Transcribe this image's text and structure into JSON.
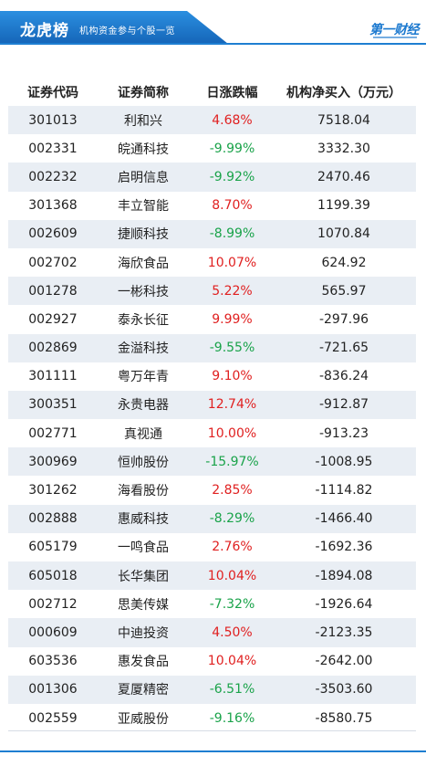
{
  "header": {
    "title": "龙虎榜",
    "subtitle": "机构资金参与个股一览",
    "logo_text": "第一财经"
  },
  "table": {
    "columns": [
      "证券代码",
      "证券简称",
      "日涨跌幅",
      "机构净买入（万元）"
    ],
    "rows": [
      {
        "code": "301013",
        "name": "利和兴",
        "change": "4.68%",
        "net": "7518.04",
        "dir": "up"
      },
      {
        "code": "002331",
        "name": "皖通科技",
        "change": "-9.99%",
        "net": "3332.30",
        "dir": "down"
      },
      {
        "code": "002232",
        "name": "启明信息",
        "change": "-9.92%",
        "net": "2470.46",
        "dir": "down"
      },
      {
        "code": "301368",
        "name": "丰立智能",
        "change": "8.70%",
        "net": "1199.39",
        "dir": "up"
      },
      {
        "code": "002609",
        "name": "捷顺科技",
        "change": "-8.99%",
        "net": "1070.84",
        "dir": "down"
      },
      {
        "code": "002702",
        "name": "海欣食品",
        "change": "10.07%",
        "net": "624.92",
        "dir": "up"
      },
      {
        "code": "001278",
        "name": "一彬科技",
        "change": "5.22%",
        "net": "565.97",
        "dir": "up"
      },
      {
        "code": "002927",
        "name": "泰永长征",
        "change": "9.99%",
        "net": "-297.96",
        "dir": "up"
      },
      {
        "code": "002869",
        "name": "金溢科技",
        "change": "-9.55%",
        "net": "-721.65",
        "dir": "down"
      },
      {
        "code": "301111",
        "name": "粤万年青",
        "change": "9.10%",
        "net": "-836.24",
        "dir": "up"
      },
      {
        "code": "300351",
        "name": "永贵电器",
        "change": "12.74%",
        "net": "-912.87",
        "dir": "up"
      },
      {
        "code": "002771",
        "name": "真视通",
        "change": "10.00%",
        "net": "-913.23",
        "dir": "up"
      },
      {
        "code": "300969",
        "name": "恒帅股份",
        "change": "-15.97%",
        "net": "-1008.95",
        "dir": "down"
      },
      {
        "code": "301262",
        "name": "海看股份",
        "change": "2.85%",
        "net": "-1114.82",
        "dir": "up"
      },
      {
        "code": "002888",
        "name": "惠威科技",
        "change": "-8.29%",
        "net": "-1466.40",
        "dir": "down"
      },
      {
        "code": "605179",
        "name": "一鸣食品",
        "change": "2.76%",
        "net": "-1692.36",
        "dir": "up"
      },
      {
        "code": "605018",
        "name": "长华集团",
        "change": "10.04%",
        "net": "-1894.08",
        "dir": "up"
      },
      {
        "code": "002712",
        "name": "思美传媒",
        "change": "-7.32%",
        "net": "-1926.64",
        "dir": "down"
      },
      {
        "code": "000609",
        "name": "中迪投资",
        "change": "4.50%",
        "net": "-2123.35",
        "dir": "up"
      },
      {
        "code": "603536",
        "name": "惠发食品",
        "change": "10.04%",
        "net": "-2642.00",
        "dir": "up"
      },
      {
        "code": "001306",
        "name": "夏厦精密",
        "change": "-6.51%",
        "net": "-3503.60",
        "dir": "down"
      },
      {
        "code": "002559",
        "name": "亚威股份",
        "change": "-9.16%",
        "net": "-8580.75",
        "dir": "down"
      }
    ]
  },
  "colors": {
    "accent": "#1e7ed1",
    "up": "#e02020",
    "down": "#1aa34a",
    "row_shade": "#e9eef4"
  }
}
